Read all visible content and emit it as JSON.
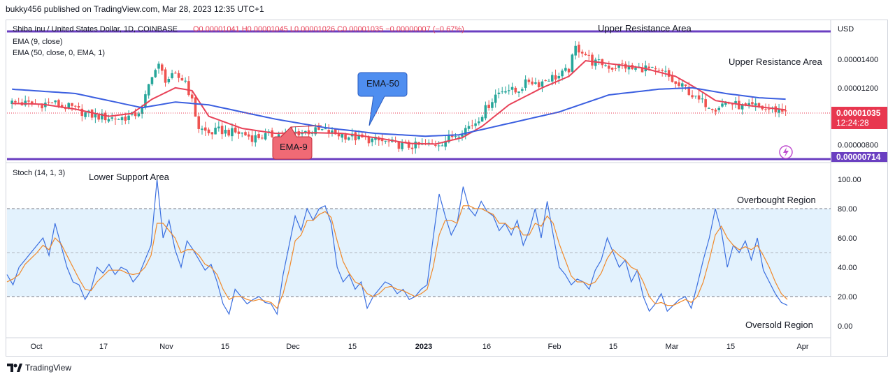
{
  "header": {
    "publisher": "bukky456 published on TradingView.com, Mar 28, 2023 12:35 UTC+1"
  },
  "main_pane": {
    "symbol_line": "Shiba Inu / United States Dollar, 1D, COINBASE",
    "ohlc": "O0.00001041  H0.00001045  L0.00001026  C0.00001035  −0.00000007 (−0.67%)",
    "indicator_1": "EMA (9, close)",
    "indicator_2": "EMA (50, close, 0, EMA, 1)",
    "currency": "USD",
    "price_ticks": [
      "0.00001400",
      "0.00001200",
      "0.00000800"
    ],
    "price_ticks_values": [
      1.4e-05,
      1.2e-05,
      8e-06
    ],
    "current_price": "0.00001035",
    "countdown": "12:24:28",
    "support_level": "0.00000714",
    "resistance_label_top": "Upper Resistance Area",
    "resistance_label_right": "Upper Resistance Area",
    "ema50_callout": "EMA-50",
    "ema9_callout": "EMA-9"
  },
  "stoch_pane": {
    "title": "Stoch (14, 1, 3)",
    "lower_support_label": "Lower Support Area",
    "overbought_label": "Overbought Region",
    "oversold_label": "Oversold Region",
    "ticks": [
      "100.00",
      "80.00",
      "60.00",
      "40.00",
      "20.00",
      "0.00"
    ]
  },
  "time_axis": {
    "labels": [
      "Oct",
      "17",
      "Nov",
      "15",
      "Dec",
      "15",
      "2023",
      "16",
      "Feb",
      "15",
      "Mar",
      "15",
      "Apr"
    ]
  },
  "footer": {
    "brand": "TradingView"
  },
  "colors": {
    "ema50": "#3b5fe0",
    "ema9": "#e84258",
    "candle_up": "#26a69a",
    "candle_down": "#ef5350",
    "level_line": "#6a3fc1",
    "stoch_k": "#3b6fe0",
    "stoch_d": "#f08a2c",
    "band_fill": "#e3f2fd",
    "price_label_bg": "#e8374f"
  },
  "chart_data": [
    {
      "type": "candlestick",
      "title": "Shiba Inu / United States Dollar, 1D, COINBASE",
      "y_unit": "USD",
      "ylim": [
        6.8e-06,
        1.62e-05
      ],
      "x_labels": [
        "Oct",
        "17",
        "Nov",
        "15",
        "Dec",
        "15",
        "2023",
        "16",
        "Feb",
        "15",
        "Mar",
        "15",
        "Apr"
      ],
      "levels": [
        {
          "label": "Upper Resistance Area",
          "value": 1.58e-05
        },
        {
          "label": "0.00000714",
          "value": 7.14e-06
        }
      ],
      "last_close": 1.035e-05,
      "ohlc_last": {
        "open": 1.041e-05,
        "high": 1.045e-05,
        "low": 1.026e-05,
        "close": 1.035e-05
      },
      "close_path": [
        [
          1,
          1095
        ],
        [
          5,
          1090
        ],
        [
          9,
          1080
        ],
        [
          13,
          1100
        ],
        [
          16,
          1070
        ],
        [
          19,
          1060
        ],
        [
          23,
          1020
        ],
        [
          26,
          1000
        ],
        [
          30,
          990
        ],
        [
          33,
          985
        ],
        [
          37,
          1000
        ],
        [
          40,
          1050
        ],
        [
          43,
          1300
        ],
        [
          45,
          1350
        ],
        [
          47,
          1260
        ],
        [
          50,
          1280
        ],
        [
          53,
          1250
        ],
        [
          55,
          1100
        ],
        [
          57,
          920
        ],
        [
          60,
          880
        ],
        [
          63,
          900
        ],
        [
          66,
          890
        ],
        [
          70,
          880
        ],
        [
          73,
          850
        ],
        [
          76,
          860
        ],
        [
          80,
          870
        ],
        [
          84,
          880
        ],
        [
          88,
          890
        ],
        [
          91,
          895
        ],
        [
          94,
          900
        ],
        [
          97,
          880
        ],
        [
          100,
          870
        ],
        [
          104,
          850
        ],
        [
          107,
          840
        ],
        [
          110,
          830
        ],
        [
          113,
          820
        ],
        [
          117,
          800
        ],
        [
          120,
          790
        ],
        [
          124,
          795
        ],
        [
          127,
          800
        ],
        [
          130,
          820
        ],
        [
          133,
          860
        ],
        [
          136,
          900
        ],
        [
          140,
          960
        ],
        [
          143,
          1050
        ],
        [
          146,
          1150
        ],
        [
          149,
          1200
        ],
        [
          152,
          1170
        ],
        [
          156,
          1250
        ],
        [
          159,
          1230
        ],
        [
          162,
          1270
        ],
        [
          165,
          1280
        ],
        [
          168,
          1330
        ],
        [
          170,
          1480
        ],
        [
          172,
          1460
        ],
        [
          175,
          1380
        ],
        [
          178,
          1370
        ],
        [
          181,
          1340
        ],
        [
          184,
          1360
        ],
        [
          187,
          1330
        ],
        [
          191,
          1340
        ],
        [
          194,
          1310
        ],
        [
          197,
          1300
        ],
        [
          200,
          1220
        ],
        [
          203,
          1200
        ],
        [
          206,
          1120
        ],
        [
          209,
          1090
        ],
        [
          212,
          1060
        ],
        [
          215,
          1100
        ],
        [
          218,
          1080
        ],
        [
          221,
          1060
        ],
        [
          224,
          1070
        ],
        [
          227,
          1050
        ],
        [
          230,
          1045
        ],
        [
          233,
          1035
        ]
      ],
      "series": [
        {
          "name": "EMA (9, close)",
          "points": [
            [
              1,
              1090
            ],
            [
              10,
              1085
            ],
            [
              20,
              1050
            ],
            [
              30,
              1000
            ],
            [
              37,
              1020
            ],
            [
              43,
              1120
            ],
            [
              50,
              1200
            ],
            [
              55,
              1180
            ],
            [
              60,
              1000
            ],
            [
              70,
              915
            ],
            [
              80,
              880
            ],
            [
              90,
              885
            ],
            [
              100,
              880
            ],
            [
              110,
              850
            ],
            [
              120,
              810
            ],
            [
              128,
              805
            ],
            [
              136,
              850
            ],
            [
              142,
              930
            ],
            [
              150,
              1080
            ],
            [
              160,
              1200
            ],
            [
              168,
              1280
            ],
            [
              173,
              1390
            ],
            [
              180,
              1370
            ],
            [
              190,
              1340
            ],
            [
              200,
              1280
            ],
            [
              206,
              1200
            ],
            [
              212,
              1110
            ],
            [
              220,
              1080
            ],
            [
              233,
              1045
            ]
          ]
        },
        {
          "name": "EMA (50, close, 0, EMA, 1)",
          "points": [
            [
              1,
              1190
            ],
            [
              20,
              1160
            ],
            [
              40,
              1060
            ],
            [
              50,
              1100
            ],
            [
              60,
              1080
            ],
            [
              80,
              980
            ],
            [
              95,
              920
            ],
            [
              110,
              880
            ],
            [
              125,
              860
            ],
            [
              135,
              870
            ],
            [
              150,
              950
            ],
            [
              165,
              1030
            ],
            [
              180,
              1150
            ],
            [
              195,
              1190
            ],
            [
              205,
              1200
            ],
            [
              215,
              1160
            ],
            [
              225,
              1130
            ],
            [
              233,
              1120
            ]
          ]
        }
      ]
    },
    {
      "type": "line",
      "title": "Stoch (14, 1, 3)",
      "ylim": [
        0,
        100
      ],
      "levels": [
        80,
        50,
        20
      ],
      "x_labels": [
        "Oct",
        "17",
        "Nov",
        "15",
        "Dec",
        "15",
        "2023",
        "16",
        "Feb",
        "15",
        "Mar",
        "15",
        "Apr"
      ],
      "series": [
        {
          "name": "K",
          "values": [
            35,
            28,
            40,
            45,
            50,
            55,
            60,
            48,
            70,
            55,
            40,
            30,
            28,
            18,
            25,
            40,
            36,
            42,
            35,
            40,
            38,
            30,
            35,
            45,
            55,
            100,
            60,
            72,
            52,
            40,
            58,
            52,
            45,
            38,
            42,
            30,
            15,
            8,
            25,
            20,
            15,
            18,
            20,
            16,
            15,
            8,
            35,
            55,
            75,
            65,
            80,
            72,
            80,
            82,
            70,
            40,
            30,
            35,
            25,
            30,
            12,
            20,
            25,
            30,
            28,
            22,
            25,
            18,
            20,
            25,
            28,
            60,
            90,
            75,
            62,
            70,
            95,
            80,
            75,
            85,
            78,
            75,
            65,
            70,
            62,
            72,
            55,
            65,
            80,
            60,
            85,
            62,
            40,
            35,
            28,
            32,
            30,
            25,
            38,
            45,
            60,
            50,
            40,
            45,
            30,
            38,
            20,
            10,
            15,
            22,
            10,
            14,
            18,
            20,
            12,
            28,
            45,
            60,
            80,
            65,
            40,
            55,
            50,
            58,
            45,
            60,
            38,
            30,
            22,
            16,
            14
          ]
        },
        {
          "name": "D",
          "values": [
            30,
            32,
            35,
            42,
            46,
            50,
            55,
            52,
            60,
            56,
            48,
            40,
            32,
            25,
            24,
            30,
            34,
            38,
            38,
            38,
            36,
            35,
            36,
            40,
            48,
            70,
            70,
            65,
            60,
            50,
            52,
            52,
            48,
            42,
            40,
            35,
            25,
            18,
            20,
            20,
            18,
            17,
            18,
            17,
            16,
            12,
            22,
            38,
            58,
            62,
            72,
            72,
            76,
            78,
            74,
            58,
            44,
            36,
            30,
            28,
            22,
            20,
            22,
            26,
            27,
            25,
            24,
            22,
            20,
            22,
            25,
            40,
            62,
            72,
            72,
            70,
            82,
            82,
            80,
            80,
            78,
            76,
            70,
            70,
            66,
            68,
            62,
            62,
            70,
            68,
            75,
            70,
            56,
            45,
            34,
            30,
            30,
            28,
            30,
            36,
            46,
            52,
            48,
            45,
            40,
            38,
            30,
            20,
            15,
            16,
            14,
            14,
            16,
            18,
            16,
            20,
            30,
            45,
            62,
            68,
            60,
            55,
            52,
            54,
            52,
            55,
            48,
            40,
            30,
            22,
            18
          ]
        }
      ]
    }
  ]
}
